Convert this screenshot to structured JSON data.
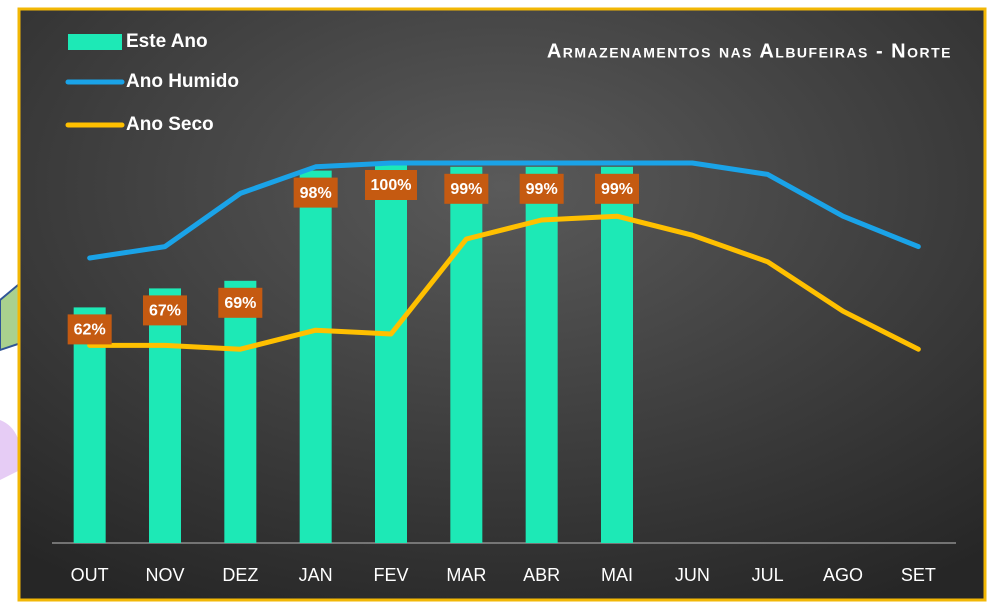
{
  "chart_data": {
    "type": "bar_line",
    "title": "Armazenamentos nas Albufeiras - Norte",
    "categories": [
      "OUT",
      "NOV",
      "DEZ",
      "JAN",
      "FEV",
      "MAR",
      "ABR",
      "MAI",
      "JUN",
      "JUL",
      "AGO",
      "SET"
    ],
    "ylim": [
      0,
      100
    ],
    "series": [
      {
        "name": "Este Ano",
        "kind": "bar",
        "color": "#1de9b6",
        "values": [
          62,
          67,
          69,
          98,
          100,
          99,
          99,
          99,
          null,
          null,
          null,
          null
        ],
        "value_labels": [
          "62%",
          "67%",
          "69%",
          "98%",
          "100%",
          "99%",
          "99%",
          "99%",
          null,
          null,
          null,
          null
        ]
      },
      {
        "name": "Ano Humido",
        "kind": "line",
        "color": "#1aa3e8",
        "values": [
          75,
          78,
          92,
          99,
          100,
          100,
          100,
          100,
          100,
          97,
          86,
          78
        ]
      },
      {
        "name": "Ano Seco",
        "kind": "line",
        "color": "#ffc000",
        "values": [
          52,
          52,
          51,
          56,
          55,
          80,
          85,
          86,
          81,
          74,
          61,
          51
        ]
      }
    ]
  }
}
